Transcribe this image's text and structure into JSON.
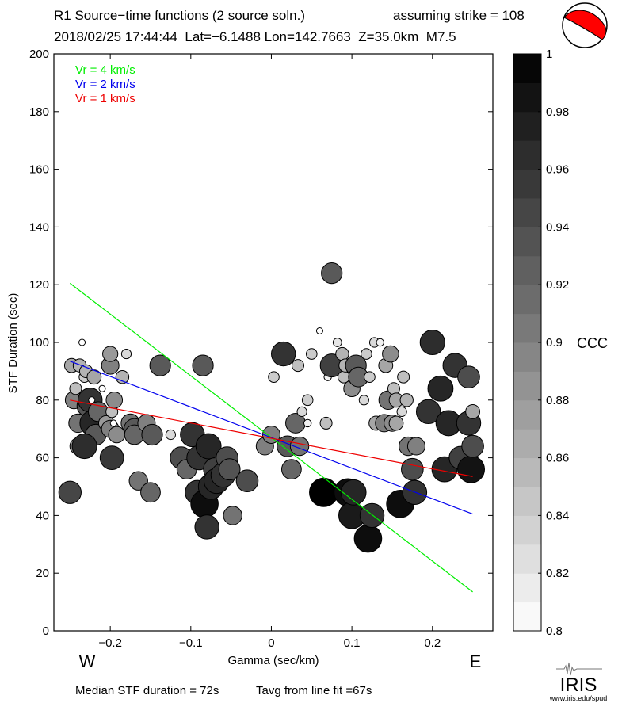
{
  "header": {
    "title": "R1 Source−time functions (2 source soln.)",
    "strike_note": "assuming strike = 108",
    "event_line": "2018/02/25 17:44:44  Lat=−6.1488 Lon=142.7663  Z=35.0km  M7.5"
  },
  "footer": {
    "median": "Median STF duration = 72s",
    "tavg": "Tavg from line fit =67s",
    "logo_text": "IRIS",
    "url": "www.iris.edu/spud"
  },
  "colors": {
    "vr4": "#00ee00",
    "vr2": "#0000ee",
    "vr1": "#ee0000",
    "beachball": "#ff0000"
  },
  "chart_data": {
    "type": "scatter",
    "xlabel": "Gamma (sec/km)",
    "ylabel": "STF Duration (sec)",
    "xlim": [
      -0.27,
      0.275
    ],
    "ylim": [
      0,
      200
    ],
    "xticks": [
      -0.2,
      -0.1,
      0,
      0.1,
      0.2
    ],
    "xticklabels": [
      "−0.2",
      "−0.1",
      "0",
      "0.1",
      "0.2"
    ],
    "yticks": [
      0,
      20,
      40,
      60,
      80,
      100,
      120,
      140,
      160,
      180,
      200
    ],
    "yticklabels": [
      "0",
      "20",
      "40",
      "60",
      "80",
      "100",
      "120",
      "140",
      "160",
      "180",
      "200"
    ],
    "direction_labels": {
      "west": "W",
      "east": "E"
    },
    "legend": [
      {
        "label": "Vr = 4 km/s",
        "color": "#00ee00"
      },
      {
        "label": "Vr = 2 km/s",
        "color": "#0000ee"
      },
      {
        "label": "Vr = 1 km/s",
        "color": "#ee0000"
      }
    ],
    "lines": [
      {
        "name": "Vr = 4 km/s",
        "color": "#00ee00",
        "x": [
          -0.25,
          0.25
        ],
        "y": [
          120.5,
          13.5
        ]
      },
      {
        "name": "Vr = 2 km/s",
        "color": "#0000ee",
        "x": [
          -0.25,
          0.25
        ],
        "y": [
          93.5,
          40.5
        ]
      },
      {
        "name": "Vr = 1 km/s",
        "color": "#ee0000",
        "x": [
          -0.25,
          0.25
        ],
        "y": [
          80,
          53.5
        ]
      }
    ],
    "colorbar": {
      "label": "CCC",
      "min": 0.8,
      "max": 1.0,
      "step": 0.01,
      "ticks": [
        0.8,
        0.82,
        0.84,
        0.86,
        0.88,
        0.9,
        0.92,
        0.94,
        0.96,
        0.98,
        1
      ],
      "ticklabels": [
        "0.8",
        "0.82",
        "0.84",
        "0.86",
        "0.88",
        "0.9",
        "0.92",
        "0.94",
        "0.96",
        "0.98",
        "1"
      ]
    },
    "points": [
      {
        "x": -0.25,
        "y": 48,
        "ccc": 0.945
      },
      {
        "x": -0.248,
        "y": 92,
        "ccc": 0.87
      },
      {
        "x": -0.245,
        "y": 80,
        "ccc": 0.9
      },
      {
        "x": -0.243,
        "y": 84,
        "ccc": 0.85
      },
      {
        "x": -0.24,
        "y": 72,
        "ccc": 0.91
      },
      {
        "x": -0.24,
        "y": 64,
        "ccc": 0.89
      },
      {
        "x": -0.238,
        "y": 92,
        "ccc": 0.86
      },
      {
        "x": -0.235,
        "y": 100,
        "ccc": 0.8
      },
      {
        "x": -0.232,
        "y": 88,
        "ccc": 0.84
      },
      {
        "x": -0.23,
        "y": 90,
        "ccc": 0.86
      },
      {
        "x": -0.228,
        "y": 78,
        "ccc": 0.935
      },
      {
        "x": -0.225,
        "y": 80,
        "ccc": 0.96
      },
      {
        "x": -0.223,
        "y": 80,
        "ccc": 0.8
      },
      {
        "x": -0.222,
        "y": 72,
        "ccc": 0.97
      },
      {
        "x": -0.22,
        "y": 88,
        "ccc": 0.87
      },
      {
        "x": -0.218,
        "y": 68,
        "ccc": 0.93
      },
      {
        "x": -0.215,
        "y": 76,
        "ccc": 0.92
      },
      {
        "x": -0.232,
        "y": 64,
        "ccc": 0.965
      },
      {
        "x": -0.205,
        "y": 72,
        "ccc": 0.88
      },
      {
        "x": -0.2,
        "y": 70,
        "ccc": 0.9
      },
      {
        "x": -0.2,
        "y": 92,
        "ccc": 0.9
      },
      {
        "x": -0.2,
        "y": 96,
        "ccc": 0.88
      },
      {
        "x": -0.198,
        "y": 76,
        "ccc": 0.85
      },
      {
        "x": -0.196,
        "y": 72,
        "ccc": 0.8
      },
      {
        "x": -0.195,
        "y": 80,
        "ccc": 0.89
      },
      {
        "x": -0.192,
        "y": 68,
        "ccc": 0.89
      },
      {
        "x": -0.21,
        "y": 84,
        "ccc": 0.8
      },
      {
        "x": -0.198,
        "y": 60,
        "ccc": 0.955
      },
      {
        "x": -0.18,
        "y": 96,
        "ccc": 0.83
      },
      {
        "x": -0.185,
        "y": 88,
        "ccc": 0.86
      },
      {
        "x": -0.175,
        "y": 72,
        "ccc": 0.91
      },
      {
        "x": -0.17,
        "y": 70,
        "ccc": 0.93
      },
      {
        "x": -0.17,
        "y": 68,
        "ccc": 0.92
      },
      {
        "x": -0.165,
        "y": 52,
        "ccc": 0.91
      },
      {
        "x": -0.155,
        "y": 72,
        "ccc": 0.9
      },
      {
        "x": -0.148,
        "y": 68,
        "ccc": 0.93
      },
      {
        "x": -0.15,
        "y": 48,
        "ccc": 0.92
      },
      {
        "x": -0.138,
        "y": 92,
        "ccc": 0.93
      },
      {
        "x": -0.125,
        "y": 68,
        "ccc": 0.83
      },
      {
        "x": -0.112,
        "y": 60,
        "ccc": 0.94
      },
      {
        "x": -0.105,
        "y": 56,
        "ccc": 0.92
      },
      {
        "x": -0.098,
        "y": 68,
        "ccc": 0.96
      },
      {
        "x": -0.085,
        "y": 92,
        "ccc": 0.93
      },
      {
        "x": -0.09,
        "y": 60,
        "ccc": 0.96
      },
      {
        "x": -0.092,
        "y": 48,
        "ccc": 0.96
      },
      {
        "x": -0.083,
        "y": 44,
        "ccc": 0.99
      },
      {
        "x": -0.08,
        "y": 36,
        "ccc": 0.96
      },
      {
        "x": -0.078,
        "y": 64,
        "ccc": 0.97
      },
      {
        "x": -0.075,
        "y": 50,
        "ccc": 0.97
      },
      {
        "x": -0.07,
        "y": 56,
        "ccc": 0.95
      },
      {
        "x": -0.068,
        "y": 52,
        "ccc": 0.97
      },
      {
        "x": -0.06,
        "y": 54,
        "ccc": 0.96
      },
      {
        "x": -0.055,
        "y": 60,
        "ccc": 0.94
      },
      {
        "x": -0.052,
        "y": 56,
        "ccc": 0.935
      },
      {
        "x": -0.048,
        "y": 40,
        "ccc": 0.91
      },
      {
        "x": -0.03,
        "y": 52,
        "ccc": 0.94
      },
      {
        "x": -0.008,
        "y": 64,
        "ccc": 0.9
      },
      {
        "x": 0.0,
        "y": 68,
        "ccc": 0.9
      },
      {
        "x": 0.003,
        "y": 88,
        "ccc": 0.84
      },
      {
        "x": 0.015,
        "y": 96,
        "ccc": 0.96
      },
      {
        "x": 0.02,
        "y": 64,
        "ccc": 0.93
      },
      {
        "x": 0.025,
        "y": 56,
        "ccc": 0.92
      },
      {
        "x": 0.03,
        "y": 72,
        "ccc": 0.92
      },
      {
        "x": 0.035,
        "y": 64,
        "ccc": 0.91
      },
      {
        "x": 0.033,
        "y": 92,
        "ccc": 0.85
      },
      {
        "x": 0.038,
        "y": 76,
        "ccc": 0.83
      },
      {
        "x": 0.045,
        "y": 80,
        "ccc": 0.84
      },
      {
        "x": 0.045,
        "y": 72,
        "ccc": 0.81
      },
      {
        "x": 0.05,
        "y": 96,
        "ccc": 0.84
      },
      {
        "x": 0.068,
        "y": 72,
        "ccc": 0.85
      },
      {
        "x": 0.06,
        "y": 104,
        "ccc": 0.8
      },
      {
        "x": 0.065,
        "y": 48,
        "ccc": 1.0
      },
      {
        "x": 0.07,
        "y": 88,
        "ccc": 0.81
      },
      {
        "x": 0.075,
        "y": 124,
        "ccc": 0.93
      },
      {
        "x": 0.075,
        "y": 92,
        "ccc": 0.95
      },
      {
        "x": 0.082,
        "y": 100,
        "ccc": 0.82
      },
      {
        "x": 0.088,
        "y": 96,
        "ccc": 0.86
      },
      {
        "x": 0.09,
        "y": 88,
        "ccc": 0.85
      },
      {
        "x": 0.092,
        "y": 92,
        "ccc": 0.86
      },
      {
        "x": 0.095,
        "y": 48,
        "ccc": 0.99
      },
      {
        "x": 0.1,
        "y": 84,
        "ccc": 0.89
      },
      {
        "x": 0.1,
        "y": 40,
        "ccc": 0.98
      },
      {
        "x": 0.102,
        "y": 48,
        "ccc": 0.97
      },
      {
        "x": 0.105,
        "y": 92,
        "ccc": 0.93
      },
      {
        "x": 0.108,
        "y": 88,
        "ccc": 0.92
      },
      {
        "x": 0.115,
        "y": 80,
        "ccc": 0.83
      },
      {
        "x": 0.118,
        "y": 96,
        "ccc": 0.84
      },
      {
        "x": 0.12,
        "y": 32,
        "ccc": 0.99
      },
      {
        "x": 0.122,
        "y": 88,
        "ccc": 0.84
      },
      {
        "x": 0.125,
        "y": 40,
        "ccc": 0.96
      },
      {
        "x": 0.128,
        "y": 100,
        "ccc": 0.83
      },
      {
        "x": 0.13,
        "y": 72,
        "ccc": 0.87
      },
      {
        "x": 0.135,
        "y": 100,
        "ccc": 0.81
      },
      {
        "x": 0.14,
        "y": 72,
        "ccc": 0.9
      },
      {
        "x": 0.142,
        "y": 92,
        "ccc": 0.87
      },
      {
        "x": 0.145,
        "y": 80,
        "ccc": 0.91
      },
      {
        "x": 0.148,
        "y": 96,
        "ccc": 0.89
      },
      {
        "x": 0.15,
        "y": 72,
        "ccc": 0.89
      },
      {
        "x": 0.152,
        "y": 84,
        "ccc": 0.85
      },
      {
        "x": 0.155,
        "y": 72,
        "ccc": 0.87
      },
      {
        "x": 0.155,
        "y": 80,
        "ccc": 0.87
      },
      {
        "x": 0.16,
        "y": 44,
        "ccc": 0.99
      },
      {
        "x": 0.162,
        "y": 76,
        "ccc": 0.83
      },
      {
        "x": 0.164,
        "y": 88,
        "ccc": 0.85
      },
      {
        "x": 0.168,
        "y": 80,
        "ccc": 0.86
      },
      {
        "x": 0.17,
        "y": 64,
        "ccc": 0.91
      },
      {
        "x": 0.175,
        "y": 56,
        "ccc": 0.94
      },
      {
        "x": 0.178,
        "y": 48,
        "ccc": 0.96
      },
      {
        "x": 0.18,
        "y": 64,
        "ccc": 0.9
      },
      {
        "x": 0.195,
        "y": 76,
        "ccc": 0.96
      },
      {
        "x": 0.2,
        "y": 100,
        "ccc": 0.965
      },
      {
        "x": 0.21,
        "y": 84,
        "ccc": 0.97
      },
      {
        "x": 0.215,
        "y": 56,
        "ccc": 0.97
      },
      {
        "x": 0.22,
        "y": 72,
        "ccc": 0.97
      },
      {
        "x": 0.228,
        "y": 92,
        "ccc": 0.96
      },
      {
        "x": 0.235,
        "y": 60,
        "ccc": 0.95
      },
      {
        "x": 0.245,
        "y": 88,
        "ccc": 0.94
      },
      {
        "x": 0.245,
        "y": 72,
        "ccc": 0.96
      },
      {
        "x": 0.248,
        "y": 56,
        "ccc": 0.985
      },
      {
        "x": 0.25,
        "y": 64,
        "ccc": 0.94
      },
      {
        "x": 0.25,
        "y": 76,
        "ccc": 0.87
      }
    ]
  }
}
